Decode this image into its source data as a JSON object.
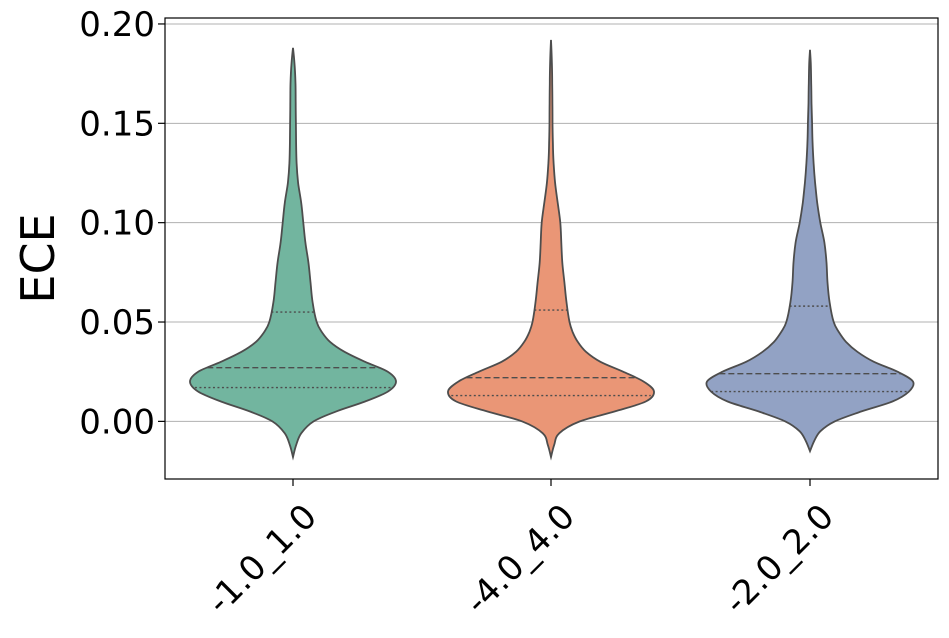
{
  "chart_data": {
    "type": "violin",
    "title": "",
    "xlabel": "",
    "ylabel": "ECE",
    "ylim": [
      -0.029,
      0.203
    ],
    "grid": {
      "y": true,
      "x": false
    },
    "y_ticks": [
      "0.00",
      "0.05",
      "0.10",
      "0.15",
      "0.20"
    ],
    "y_tick_values": [
      0.0,
      0.05,
      0.1,
      0.15,
      0.2
    ],
    "categories": [
      "-1.0_1.0",
      "-4.0_4.0",
      "-2.0_2.0"
    ],
    "colors": [
      "#72b59f",
      "#ea9676",
      "#92a2c4"
    ],
    "edge_color": "#4d4d4d",
    "inner": "quartile",
    "violins": [
      {
        "category": "-1.0_1.0",
        "min": -0.018,
        "max": 0.188,
        "q1": 0.017,
        "median": 0.027,
        "q3": 0.055,
        "profile": [
          [
            -0.018,
            0.0
          ],
          [
            -0.012,
            0.03
          ],
          [
            -0.006,
            0.08
          ],
          [
            0.0,
            0.2
          ],
          [
            0.005,
            0.42
          ],
          [
            0.01,
            0.7
          ],
          [
            0.015,
            0.92
          ],
          [
            0.02,
            1.0
          ],
          [
            0.025,
            0.92
          ],
          [
            0.03,
            0.7
          ],
          [
            0.035,
            0.5
          ],
          [
            0.04,
            0.36
          ],
          [
            0.045,
            0.28
          ],
          [
            0.05,
            0.23
          ],
          [
            0.06,
            0.19
          ],
          [
            0.07,
            0.17
          ],
          [
            0.08,
            0.15
          ],
          [
            0.09,
            0.12
          ],
          [
            0.1,
            0.1
          ],
          [
            0.11,
            0.08
          ],
          [
            0.12,
            0.05
          ],
          [
            0.13,
            0.035
          ],
          [
            0.14,
            0.03
          ],
          [
            0.15,
            0.028
          ],
          [
            0.16,
            0.026
          ],
          [
            0.17,
            0.024
          ],
          [
            0.18,
            0.015
          ],
          [
            0.188,
            0.0
          ]
        ]
      },
      {
        "category": "-4.0_4.0",
        "min": -0.018,
        "max": 0.192,
        "q1": 0.013,
        "median": 0.022,
        "q3": 0.056,
        "profile": [
          [
            -0.018,
            0.0
          ],
          [
            -0.012,
            0.03
          ],
          [
            -0.006,
            0.08
          ],
          [
            0.0,
            0.28
          ],
          [
            0.005,
            0.62
          ],
          [
            0.01,
            0.92
          ],
          [
            0.015,
            1.0
          ],
          [
            0.02,
            0.9
          ],
          [
            0.025,
            0.7
          ],
          [
            0.03,
            0.48
          ],
          [
            0.035,
            0.34
          ],
          [
            0.04,
            0.26
          ],
          [
            0.045,
            0.21
          ],
          [
            0.05,
            0.18
          ],
          [
            0.06,
            0.15
          ],
          [
            0.07,
            0.13
          ],
          [
            0.08,
            0.11
          ],
          [
            0.09,
            0.1
          ],
          [
            0.1,
            0.09
          ],
          [
            0.11,
            0.065
          ],
          [
            0.12,
            0.04
          ],
          [
            0.13,
            0.025
          ],
          [
            0.14,
            0.018
          ],
          [
            0.15,
            0.015
          ],
          [
            0.16,
            0.014
          ],
          [
            0.17,
            0.012
          ],
          [
            0.18,
            0.009
          ],
          [
            0.192,
            0.0
          ]
        ]
      },
      {
        "category": "-2.0_2.0",
        "min": -0.015,
        "max": 0.187,
        "q1": 0.015,
        "median": 0.024,
        "q3": 0.058,
        "profile": [
          [
            -0.015,
            0.0
          ],
          [
            -0.01,
            0.04
          ],
          [
            -0.005,
            0.1
          ],
          [
            0.0,
            0.24
          ],
          [
            0.005,
            0.5
          ],
          [
            0.01,
            0.8
          ],
          [
            0.015,
            0.96
          ],
          [
            0.02,
            1.0
          ],
          [
            0.025,
            0.85
          ],
          [
            0.03,
            0.62
          ],
          [
            0.035,
            0.46
          ],
          [
            0.04,
            0.35
          ],
          [
            0.045,
            0.28
          ],
          [
            0.05,
            0.23
          ],
          [
            0.06,
            0.19
          ],
          [
            0.07,
            0.17
          ],
          [
            0.08,
            0.16
          ],
          [
            0.09,
            0.14
          ],
          [
            0.1,
            0.1
          ],
          [
            0.11,
            0.07
          ],
          [
            0.12,
            0.05
          ],
          [
            0.13,
            0.035
          ],
          [
            0.14,
            0.025
          ],
          [
            0.15,
            0.02
          ],
          [
            0.16,
            0.015
          ],
          [
            0.17,
            0.012
          ],
          [
            0.18,
            0.008
          ],
          [
            0.187,
            0.0
          ]
        ]
      }
    ]
  }
}
